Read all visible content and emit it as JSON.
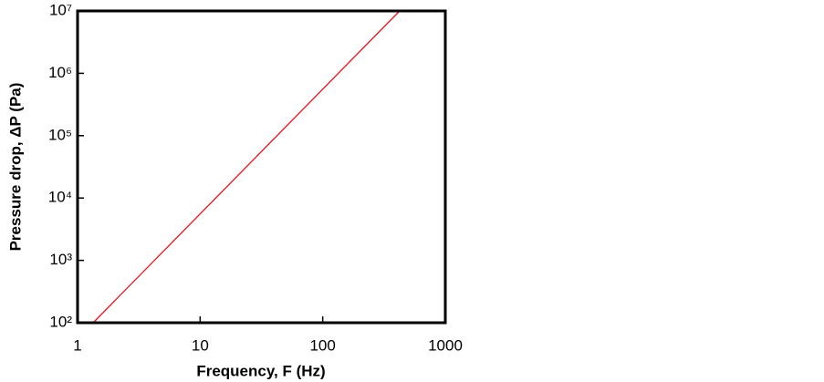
{
  "chart_data": {
    "type": "line",
    "xlabel": "Frequency, F (Hz)",
    "ylabel": "Pressure drop, ΔP (Pa)",
    "xscale": "log",
    "yscale": "log",
    "xlim": [
      1,
      1000
    ],
    "xticks": [
      1,
      10,
      100,
      1000
    ],
    "ylim": [
      100,
      10000000
    ],
    "yticks": [
      {
        "value": 100,
        "label": "10²"
      },
      {
        "value": 1000,
        "label": "10³"
      },
      {
        "value": 10000,
        "label": "10⁴"
      },
      {
        "value": 100000,
        "label": "10⁵"
      },
      {
        "value": 1000000,
        "label": "10⁶"
      },
      {
        "value": 10000000,
        "label": "10⁷"
      }
    ],
    "series": [
      {
        "color": "#e8141c",
        "x": [
          1.34,
          424
        ],
        "values": [
          100,
          10000000
        ]
      }
    ]
  }
}
